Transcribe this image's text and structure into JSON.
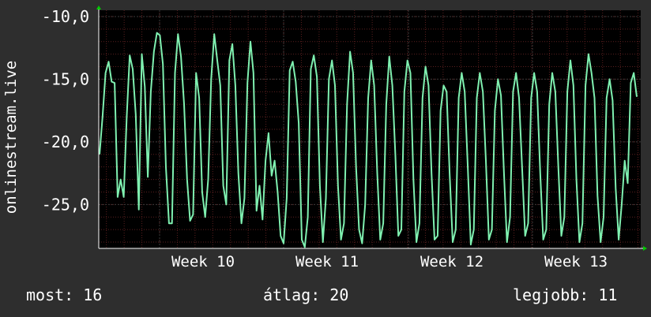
{
  "chart_data": {
    "type": "line",
    "title": "",
    "xlabel": "",
    "ylabel": "onlinestream.live",
    "x_tick_labels": [
      "Week 10",
      "Week 11",
      "Week 12",
      "Week 13"
    ],
    "y_tick_labels": [
      "-10,0",
      "-15,0",
      "-20,0",
      "-25,0"
    ],
    "y_ticks": [
      -10,
      -15,
      -20,
      -25
    ],
    "ylim": [
      -28.5,
      -9.5
    ],
    "grid": true,
    "colors": {
      "line": "#7ff0b0",
      "background": "#000000",
      "grid_major": "#3a3a3a",
      "grid_minor": "#5a1f1f",
      "axis_arrow": "#00cc00"
    },
    "series": [
      {
        "values": [
          -21.0,
          -18,
          -14.5,
          -13.6,
          -15.2,
          -15.3,
          -24.4,
          -23,
          -24.4,
          -18,
          -13.1,
          -14.2,
          -17.8,
          -25.4,
          -13,
          -15.6,
          -22.8,
          -16,
          -12.8,
          -11.3,
          -11.5,
          -13.8,
          -22,
          -26.5,
          -26.5,
          -14.5,
          -11.4,
          -13.2,
          -17,
          -23,
          -26.3,
          -25.8,
          -14.5,
          -16.5,
          -24,
          -26,
          -23,
          -15,
          -11.4,
          -13.5,
          -15.5,
          -23.5,
          -25,
          -13.5,
          -12.2,
          -15.5,
          -22.5,
          -26.5,
          -24.5,
          -15.3,
          -12,
          -14.5,
          -25.5,
          -23.5,
          -26.2,
          -21.5,
          -19.3,
          -22.7,
          -21.5,
          -24,
          -27.5,
          -28.1,
          -24.5,
          -14.3,
          -13.6,
          -15.2,
          -18.5,
          -27.8,
          -28.4,
          -26,
          -14.2,
          -13.1,
          -14.8,
          -23.5,
          -28,
          -24.5,
          -15,
          -13.5,
          -15.5,
          -23.5,
          -27.8,
          -26.5,
          -17,
          -12.8,
          -14.5,
          -22,
          -27,
          -28.1,
          -25,
          -16.5,
          -13.5,
          -15.5,
          -22.5,
          -27.8,
          -26.5,
          -17,
          -13.2,
          -15.5,
          -21,
          -27.5,
          -27,
          -16,
          -13.5,
          -14.5,
          -23,
          -28,
          -26.5,
          -16.5,
          -14,
          -15.5,
          -22.5,
          -27.8,
          -27.5,
          -17.5,
          -15.5,
          -16,
          -22.5,
          -28,
          -27,
          -16.5,
          -14.5,
          -16,
          -22,
          -28.2,
          -27,
          -16.5,
          -14.5,
          -16,
          -21.5,
          -27.8,
          -27,
          -17.5,
          -15,
          -16.3,
          -22.5,
          -28,
          -26,
          -16,
          -14.5,
          -16.5,
          -22,
          -27.5,
          -26.5,
          -16.5,
          -14.5,
          -16,
          -22.5,
          -27.8,
          -27,
          -17,
          -14.5,
          -16,
          -22,
          -27.5,
          -26,
          -16,
          -13.5,
          -15.5,
          -23,
          -28,
          -26.5,
          -15.5,
          -13,
          -14.5,
          -16.5,
          -24.3,
          -28,
          -26,
          -16.5,
          -15,
          -16.7,
          -23.7,
          -27.8,
          -25,
          -21.5,
          -23.3,
          -15.3,
          -14.5,
          -16.4
        ],
        "color": "#7ff0b0"
      }
    ]
  },
  "footer": {
    "current_label": "most:",
    "current_value": "16",
    "average_label": "átlag:",
    "average_value": "20",
    "best_label": "legjobb:",
    "best_value": "11"
  }
}
